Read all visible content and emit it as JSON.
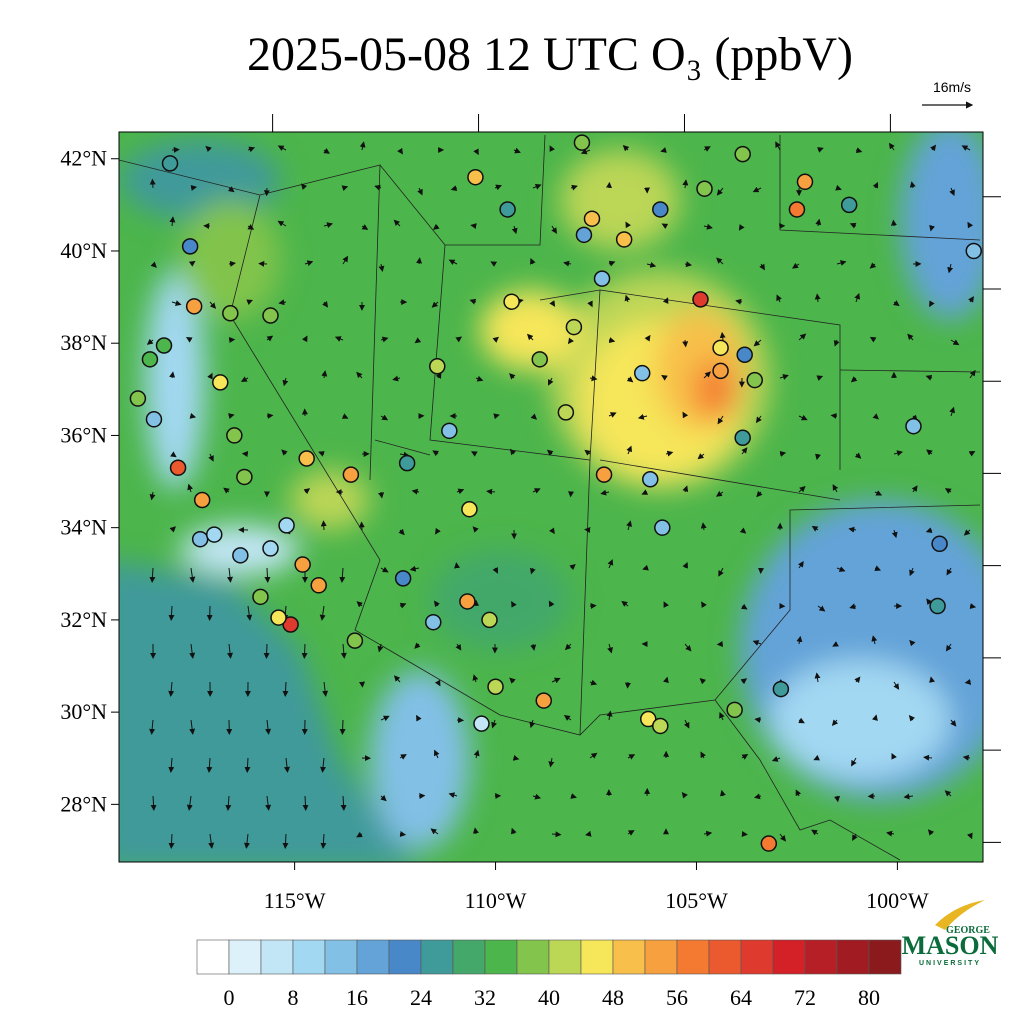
{
  "map": {
    "title": "2025-05-08 12 UTC O₃ (ppbV)",
    "wind_reference": "16m/s",
    "xlim": [
      -119.37,
      -97.87
    ],
    "ylim": [
      26.75,
      42.58
    ],
    "xticks": [
      {
        "value": -115,
        "label": "115°W"
      },
      {
        "value": -110,
        "label": "110°W"
      },
      {
        "value": -105,
        "label": "105°W"
      },
      {
        "value": -100,
        "label": "100°W"
      }
    ],
    "yticks": [
      {
        "value": 42,
        "label": "42°N"
      },
      {
        "value": 40,
        "label": "40°N"
      },
      {
        "value": 38,
        "label": "38°N"
      },
      {
        "value": 36,
        "label": "36°N"
      },
      {
        "value": 34,
        "label": "34°N"
      },
      {
        "value": 32,
        "label": "32°N"
      },
      {
        "value": 30,
        "label": "30°N"
      },
      {
        "value": 28,
        "label": "28°N"
      }
    ],
    "colorbar": {
      "range": [
        -4,
        84
      ],
      "ticks": [
        0,
        8,
        16,
        24,
        32,
        40,
        48,
        56,
        64,
        72,
        80
      ],
      "colors": [
        "#ffffff",
        "#dcf1fa",
        "#c2e6f6",
        "#a3d8f2",
        "#82c0e6",
        "#63a3d8",
        "#4888c8",
        "#3f9a9a",
        "#43a86a",
        "#4cb54b",
        "#82c44c",
        "#bcd656",
        "#f6e65a",
        "#f8c04a",
        "#f7a040",
        "#f47a32",
        "#ea5a2e",
        "#df3a2e",
        "#d42128",
        "#b71f26",
        "#a11c22",
        "#8b1a1d"
      ]
    },
    "stations": [
      {
        "lon": -117.5,
        "lat": 38.8,
        "value": 54
      },
      {
        "lon": -117.9,
        "lat": 35.3,
        "value": 60
      },
      {
        "lon": -117.3,
        "lat": 34.6,
        "value": 52
      },
      {
        "lon": -116.85,
        "lat": 37.15,
        "value": 46
      },
      {
        "lon": -115.1,
        "lat": 31.9,
        "value": 66
      },
      {
        "lon": -115.4,
        "lat": 32.05,
        "value": 46
      },
      {
        "lon": -114.8,
        "lat": 33.2,
        "value": 54
      },
      {
        "lon": -114.4,
        "lat": 32.75,
        "value": 54
      },
      {
        "lon": -114.7,
        "lat": 35.5,
        "value": 50
      },
      {
        "lon": -113.6,
        "lat": 35.15,
        "value": 52
      },
      {
        "lon": -110.65,
        "lat": 34.4,
        "value": 46
      },
      {
        "lon": -110.5,
        "lat": 41.6,
        "value": 50
      },
      {
        "lon": -110.7,
        "lat": 32.4,
        "value": 52
      },
      {
        "lon": -108.8,
        "lat": 30.25,
        "value": 52
      },
      {
        "lon": -104.9,
        "lat": 38.95,
        "value": 66
      },
      {
        "lon": -104.4,
        "lat": 37.9,
        "value": 46
      },
      {
        "lon": -104.4,
        "lat": 37.4,
        "value": 52
      },
      {
        "lon": -107.3,
        "lat": 35.15,
        "value": 52
      },
      {
        "lon": -106.8,
        "lat": 40.25,
        "value": 50
      },
      {
        "lon": -107.6,
        "lat": 40.7,
        "value": 50
      },
      {
        "lon": -102.3,
        "lat": 41.5,
        "value": 52
      },
      {
        "lon": -102.5,
        "lat": 40.9,
        "value": 56
      },
      {
        "lon": -103.2,
        "lat": 27.15,
        "value": 56
      },
      {
        "lon": -106.2,
        "lat": 29.85,
        "value": 46
      },
      {
        "lon": -109.6,
        "lat": 38.9,
        "value": 46
      },
      {
        "lon": -111.45,
        "lat": 37.5,
        "value": 40
      },
      {
        "lon": -118.1,
        "lat": 41.9,
        "value": 24
      },
      {
        "lon": -117.6,
        "lat": 40.1,
        "value": 22
      },
      {
        "lon": -109.7,
        "lat": 40.9,
        "value": 24
      },
      {
        "lon": -105.9,
        "lat": 40.9,
        "value": 20
      },
      {
        "lon": -101.2,
        "lat": 41.0,
        "value": 24
      },
      {
        "lon": -112.2,
        "lat": 35.4,
        "value": 24
      },
      {
        "lon": -112.3,
        "lat": 32.9,
        "value": 22
      },
      {
        "lon": -102.9,
        "lat": 30.5,
        "value": 24
      },
      {
        "lon": -99.0,
        "lat": 32.3,
        "value": 24
      },
      {
        "lon": -98.1,
        "lat": 40.0,
        "value": 14
      },
      {
        "lon": -103.8,
        "lat": 37.75,
        "value": 22
      },
      {
        "lon": -103.85,
        "lat": 35.95,
        "value": 24
      },
      {
        "lon": -118.5,
        "lat": 36.35,
        "value": 12
      },
      {
        "lon": -117.35,
        "lat": 33.75,
        "value": 14
      },
      {
        "lon": -116.35,
        "lat": 33.4,
        "value": 12
      },
      {
        "lon": -115.6,
        "lat": 33.55,
        "value": 10
      },
      {
        "lon": -115.2,
        "lat": 34.05,
        "value": 10
      },
      {
        "lon": -117.0,
        "lat": 33.85,
        "value": 10
      },
      {
        "lon": -111.15,
        "lat": 36.1,
        "value": 14
      },
      {
        "lon": -110.35,
        "lat": 29.75,
        "value": 6
      },
      {
        "lon": -111.55,
        "lat": 31.95,
        "value": 14
      },
      {
        "lon": -99.6,
        "lat": 36.2,
        "value": 14
      },
      {
        "lon": -98.95,
        "lat": 33.65,
        "value": 20
      },
      {
        "lon": -107.35,
        "lat": 39.4,
        "value": 12
      },
      {
        "lon": -107.8,
        "lat": 40.35,
        "value": 18
      },
      {
        "lon": -106.35,
        "lat": 37.35,
        "value": 14
      },
      {
        "lon": -106.15,
        "lat": 35.05,
        "value": 14
      },
      {
        "lon": -105.85,
        "lat": 34.0,
        "value": 14
      },
      {
        "lon": -104.8,
        "lat": 41.35,
        "value": 36
      },
      {
        "lon": -103.85,
        "lat": 42.1,
        "value": 36
      },
      {
        "lon": -107.85,
        "lat": 42.35,
        "value": 38
      },
      {
        "lon": -116.25,
        "lat": 35.1,
        "value": 36
      },
      {
        "lon": -113.5,
        "lat": 31.55,
        "value": 36
      },
      {
        "lon": -116.5,
        "lat": 36.0,
        "value": 36
      },
      {
        "lon": -115.6,
        "lat": 38.6,
        "value": 36
      },
      {
        "lon": -115.85,
        "lat": 32.5,
        "value": 36
      },
      {
        "lon": -118.9,
        "lat": 36.8,
        "value": 36
      },
      {
        "lon": -108.9,
        "lat": 37.65,
        "value": 36
      },
      {
        "lon": -108.25,
        "lat": 36.5,
        "value": 40
      },
      {
        "lon": -108.05,
        "lat": 38.35,
        "value": 40
      },
      {
        "lon": -110.15,
        "lat": 32.0,
        "value": 40
      },
      {
        "lon": -110.0,
        "lat": 30.55,
        "value": 40
      },
      {
        "lon": -104.05,
        "lat": 30.05,
        "value": 36
      },
      {
        "lon": -105.9,
        "lat": 29.7,
        "value": 40
      },
      {
        "lon": -103.55,
        "lat": 37.2,
        "value": 36
      },
      {
        "lon": -116.6,
        "lat": 38.65,
        "value": 36
      },
      {
        "lon": -118.25,
        "lat": 37.95,
        "value": 34
      },
      {
        "lon": -118.6,
        "lat": 37.65,
        "value": 34
      }
    ],
    "logo": {
      "top": "GEORGE",
      "main": "MASON",
      "bottom": "UNIVERSITY"
    }
  }
}
